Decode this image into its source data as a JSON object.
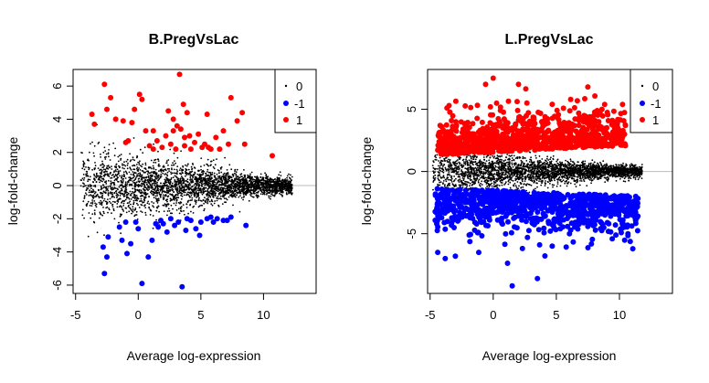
{
  "chart_data": [
    {
      "type": "scatter",
      "title": "B.PregVsLac",
      "xlabel": "Average log-expression",
      "ylabel": "log-fold-change",
      "xlim": [
        -5.2,
        14.2
      ],
      "ylim": [
        -6.5,
        7.0
      ],
      "xticks": [
        -5,
        0,
        5,
        10
      ],
      "yticks": [
        -6,
        -4,
        -2,
        0,
        2,
        4,
        6
      ],
      "grid": false,
      "legend_position": "top-right",
      "legend": [
        {
          "label": "0",
          "color": "#000000",
          "marker": "small-dot"
        },
        {
          "label": "-1",
          "color": "#0000ff",
          "marker": "dot"
        },
        {
          "label": "1",
          "color": "#ff0000",
          "marker": "dot"
        }
      ],
      "reference_line": {
        "y": 0,
        "color": "#bbbbbb"
      },
      "series": [
        {
          "label": "0",
          "color": "#000000",
          "n_points": 3200,
          "x_range": [
            -4.6,
            12.3
          ],
          "points_note": "dense cloud centered on y=0, spread ~±2.5"
        },
        {
          "label": "1",
          "color": "#ff0000",
          "points": [
            [
              -3.7,
              4.3
            ],
            [
              -3.5,
              3.7
            ],
            [
              -2.7,
              6.1
            ],
            [
              -2.5,
              4.6
            ],
            [
              -2.2,
              5.3
            ],
            [
              -1.8,
              4.0
            ],
            [
              -1.2,
              3.9
            ],
            [
              -0.3,
              4.6
            ],
            [
              0.1,
              5.5
            ],
            [
              0.3,
              5.2
            ],
            [
              0.6,
              3.3
            ],
            [
              -0.5,
              3.8
            ],
            [
              1.2,
              3.3
            ],
            [
              1.9,
              2.3
            ],
            [
              2.2,
              3.0
            ],
            [
              2.4,
              4.5
            ],
            [
              2.8,
              4.0
            ],
            [
              3.1,
              3.6
            ],
            [
              3.3,
              6.7
            ],
            [
              3.4,
              3.4
            ],
            [
              3.7,
              2.9
            ],
            [
              3.9,
              4.4
            ],
            [
              4.2,
              2.2
            ],
            [
              4.5,
              2.6
            ],
            [
              4.8,
              3.1
            ],
            [
              5.1,
              2.3
            ],
            [
              5.5,
              4.3
            ],
            [
              5.8,
              2.2
            ],
            [
              6.2,
              2.9
            ],
            [
              6.5,
              2.2
            ],
            [
              6.8,
              3.3
            ],
            [
              7.2,
              2.5
            ],
            [
              7.4,
              5.3
            ],
            [
              7.9,
              3.9
            ],
            [
              8.3,
              4.4
            ],
            [
              8.5,
              2.5
            ],
            [
              2.6,
              2.5
            ],
            [
              3.0,
              2.2
            ],
            [
              1.5,
              2.7
            ],
            [
              0.9,
              2.4
            ],
            [
              -0.8,
              2.7
            ],
            [
              4.1,
              3.0
            ],
            [
              5.3,
              2.5
            ],
            [
              2.8,
              3.3
            ],
            [
              3.7,
              2.4
            ],
            [
              1.2,
              2.2
            ],
            [
              5.6,
              2.3
            ],
            [
              3.6,
              4.9
            ],
            [
              -1.0,
              2.6
            ],
            [
              10.7,
              1.8
            ]
          ]
        },
        {
          "label": "-1",
          "color": "#0000ff",
          "points": [
            [
              -2.8,
              -3.7
            ],
            [
              -2.7,
              -5.3
            ],
            [
              -2.5,
              -4.3
            ],
            [
              -1.5,
              -2.5
            ],
            [
              -1.3,
              -3.3
            ],
            [
              -0.6,
              -3.5
            ],
            [
              -0.2,
              -2.2
            ],
            [
              0.3,
              -5.9
            ],
            [
              0.8,
              -4.3
            ],
            [
              1.1,
              -3.3
            ],
            [
              1.6,
              -2.5
            ],
            [
              2.0,
              -2.3
            ],
            [
              2.3,
              -2.8
            ],
            [
              2.6,
              -2.0
            ],
            [
              3.2,
              -2.2
            ],
            [
              3.5,
              -6.1
            ],
            [
              3.8,
              -2.7
            ],
            [
              4.2,
              -2.1
            ],
            [
              4.6,
              -2.6
            ],
            [
              5.0,
              -2.2
            ],
            [
              5.5,
              -2.0
            ],
            [
              6.0,
              -2.2
            ],
            [
              6.3,
              -2.0
            ],
            [
              6.8,
              -2.1
            ],
            [
              7.4,
              -1.9
            ],
            [
              8.6,
              -2.4
            ],
            [
              1.4,
              -2.3
            ],
            [
              -1.0,
              -2.2
            ],
            [
              0.0,
              -2.6
            ],
            [
              2.9,
              -2.4
            ],
            [
              4.9,
              -3.0
            ],
            [
              5.8,
              -1.9
            ],
            [
              -2.4,
              -3.1
            ],
            [
              1.8,
              -2.1
            ],
            [
              3.9,
              -2.0
            ],
            [
              7.1,
              -2.1
            ],
            [
              -0.9,
              -4.1
            ]
          ]
        }
      ]
    },
    {
      "type": "scatter",
      "title": "L.PregVsLac",
      "xlabel": "Average log-expression",
      "ylabel": "log-fold-change",
      "xlim": [
        -5.2,
        14.2
      ],
      "ylim": [
        -9.8,
        8.2
      ],
      "xticks": [
        -5,
        0,
        5,
        10
      ],
      "yticks": [
        -5,
        0,
        5
      ],
      "grid": false,
      "legend_position": "top-right",
      "legend": [
        {
          "label": "0",
          "color": "#000000",
          "marker": "small-dot"
        },
        {
          "label": "-1",
          "color": "#0000ff",
          "marker": "dot"
        },
        {
          "label": "1",
          "color": "#ff0000",
          "marker": "dot"
        }
      ],
      "reference_line": {
        "y": 0,
        "color": "#bbbbbb"
      },
      "series": [
        {
          "label": "0",
          "color": "#000000",
          "n_points": 3200,
          "x_range": [
            -4.8,
            11.8
          ],
          "points_note": "dense cloud centered on y=0, spread ~±2"
        },
        {
          "label": "1",
          "color": "#ff0000",
          "n_points": 900,
          "x_range": [
            -4.4,
            10.5
          ],
          "y_range": [
            1.2,
            7.5
          ],
          "points_note": "dense band above the black cloud; highest points near x=0, y=7.5"
        },
        {
          "label": "-1",
          "color": "#0000ff",
          "n_points": 900,
          "x_range": [
            -4.6,
            11.5
          ],
          "y_range": [
            -9.2,
            -1.2
          ],
          "points_note": "dense band below the black cloud; lowest point near x=1.5, y=-9.2"
        }
      ]
    }
  ]
}
